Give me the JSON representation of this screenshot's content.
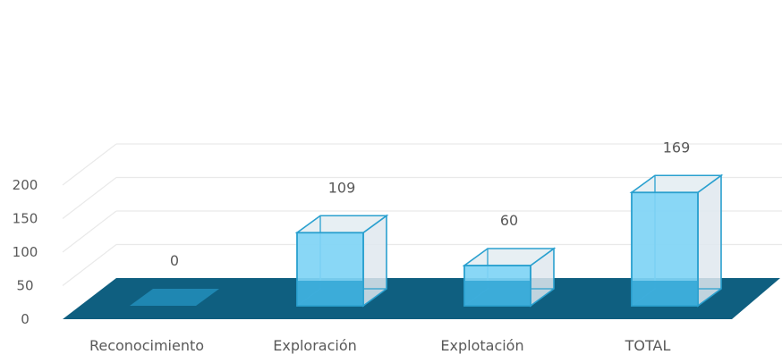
{
  "chart_data": {
    "type": "bar",
    "style": "3d-column",
    "categories": [
      "Reconocimiento",
      "Exploración",
      "Explotación",
      "TOTAL"
    ],
    "values": [
      0,
      109,
      60,
      169
    ],
    "data_labels": [
      "0",
      "109",
      "60",
      "169"
    ],
    "yticks": [
      "0",
      "50",
      "100",
      "150",
      "200"
    ],
    "ylim": [
      0,
      200
    ],
    "grid": true,
    "legend": "none",
    "colors": {
      "bar_front": "#7fd4f5",
      "bar_side": "#dfe8ee",
      "bar_top": "#e4edf2",
      "bar_edge": "#2aa0cf",
      "floor": "#0f5f80",
      "floor_bar": "#2aa2d3",
      "gridline": "#e9e9e9",
      "text": "#595959"
    }
  }
}
